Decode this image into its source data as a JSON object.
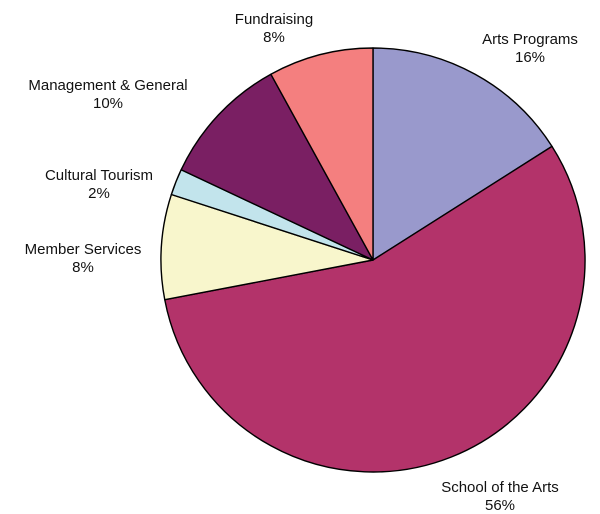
{
  "chart_data": {
    "type": "pie",
    "title": "",
    "slices": [
      {
        "label": "Arts Programs",
        "value": 16,
        "value_label": "16%",
        "color": "#9999cc"
      },
      {
        "label": "School of the Arts",
        "value": 56,
        "value_label": "56%",
        "color": "#b3336a"
      },
      {
        "label": "Member Services",
        "value": 8,
        "value_label": "8%",
        "color": "#f8f6cc"
      },
      {
        "label": "Cultural Tourism",
        "value": 2,
        "value_label": "2%",
        "color": "#c2e4ec"
      },
      {
        "label": "Management & General",
        "value": 10,
        "value_label": "10%",
        "color": "#7a1f63"
      },
      {
        "label": "Fundraising",
        "value": 8,
        "value_label": "8%",
        "color": "#f47f7f"
      }
    ],
    "legend": "none",
    "labels": "outside"
  }
}
